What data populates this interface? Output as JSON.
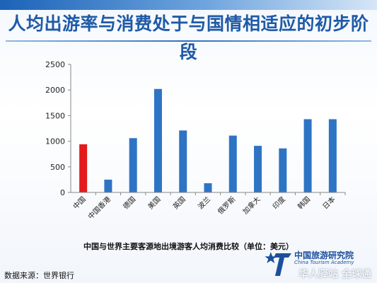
{
  "title": "人均出游率与消费处于与国情相适应的初步阶段",
  "caption": "中国与世界主要客源地出境游客人均消费比较（单位：美元）",
  "source": "数据来源：世界银行",
  "brand": {
    "name_cn": "中国旅游研究院",
    "name_en": "China Tourism Academy",
    "watermark": "华人驿站 全球通"
  },
  "colors": {
    "bar": "#2e74c5",
    "highlight": "#e31b1b",
    "axis": "#888888",
    "title": "#1f5aa6"
  },
  "chart_data": {
    "type": "bar",
    "categories": [
      "中国",
      "中国香港",
      "德国",
      "美国",
      "英国",
      "波兰",
      "俄罗斯",
      "加拿大",
      "印度",
      "韩国",
      "日本"
    ],
    "values": [
      940,
      250,
      1060,
      2020,
      1210,
      180,
      1110,
      910,
      860,
      1430,
      1430
    ],
    "highlight_index": 0,
    "ylim": [
      0,
      2500
    ],
    "yticks": [
      0,
      500,
      1000,
      1500,
      2000,
      2500
    ],
    "grid": false,
    "legend": "none",
    "title": "",
    "xlabel": "",
    "ylabel": ""
  }
}
